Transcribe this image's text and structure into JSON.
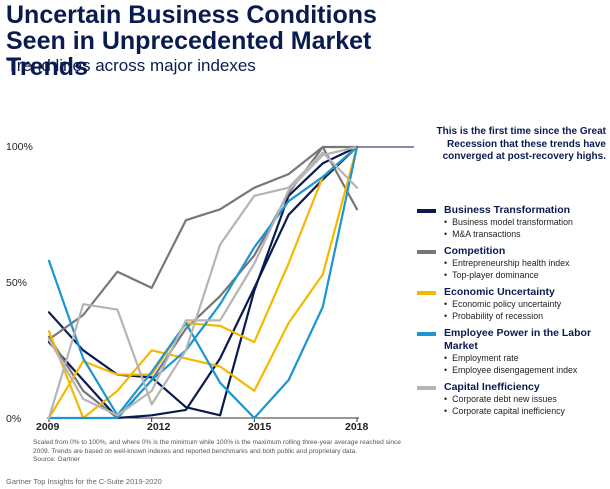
{
  "header": {
    "title": "Uncertain Business Conditions Seen in Unprecedented Market Trends",
    "subtitle": "Trend lines across major indexes"
  },
  "annotation": "This is the first time since the Great Recession that these trends have converged at post-recovery highs.",
  "footnote": {
    "scaling": "Scaled from 0% to 100%, and where 0% is the minimum while 100% is the maximum rolling three-year average reached since 2009. Trends are based on well-known indexes and reported benchmarks and both public and proprietary data.",
    "source": "Source: Gartner"
  },
  "credit": "Gartner Top Insights for the C-Suite 2019-2020",
  "legend": [
    {
      "name": "Business Transformation",
      "color": "#0a1b4f",
      "items": [
        "Business model transformation",
        "M&A transactions"
      ]
    },
    {
      "name": "Competition",
      "color": "#777777",
      "items": [
        "Entrepreneurship health index",
        "Top-player dominance"
      ]
    },
    {
      "name": "Economic Uncertainty",
      "color": "#f5b800",
      "items": [
        "Economic policy uncertainty",
        "Probability of recession"
      ]
    },
    {
      "name": "Employee Power in the Labor Market",
      "color": "#1c95d1",
      "items": [
        "Employment rate",
        "Employee disengagement index"
      ]
    },
    {
      "name": "Capital Inefficiency",
      "color": "#b5b5b5",
      "items": [
        "Corporate debt new issues",
        "Corporate capital inefficiency"
      ]
    }
  ],
  "chart_data": {
    "type": "line",
    "x": [
      2009,
      2010,
      2011,
      2012,
      2013,
      2014,
      2015,
      2016,
      2017,
      2018
    ],
    "xticks": [
      "2009",
      "2012",
      "2015",
      "2018"
    ],
    "yticks": [
      "0%",
      "50%",
      "100%"
    ],
    "ylim": [
      0,
      100
    ],
    "xlim": [
      2009,
      2018
    ],
    "series": [
      {
        "group": "Business Transformation",
        "color": "#0a1b4f",
        "values": [
          39,
          25,
          16,
          15,
          4,
          1,
          47,
          82,
          94,
          100
        ]
      },
      {
        "group": "Business Transformation",
        "color": "#0a1b4f",
        "values": [
          28,
          14,
          0,
          1,
          3,
          22,
          48,
          75,
          88,
          100
        ]
      },
      {
        "group": "Competition",
        "color": "#777777",
        "values": [
          29,
          38,
          54,
          48,
          73,
          77,
          85,
          90,
          100,
          77
        ]
      },
      {
        "group": "Competition",
        "color": "#777777",
        "values": [
          30,
          10,
          0,
          14,
          33,
          45,
          60,
          83,
          100,
          100
        ]
      },
      {
        "group": "Economic Uncertainty",
        "color": "#f5b800",
        "values": [
          32,
          0,
          10,
          25,
          22,
          19,
          10,
          35,
          53,
          100
        ]
      },
      {
        "group": "Economic Uncertainty",
        "color": "#f5b800",
        "values": [
          0,
          21,
          16,
          16,
          35,
          34,
          28,
          57,
          89,
          100
        ]
      },
      {
        "group": "Employee Power in the Labor Market",
        "color": "#1c95d1",
        "values": [
          58,
          22,
          1,
          17,
          35,
          13,
          0,
          14,
          41,
          100
        ]
      },
      {
        "group": "Employee Power in the Labor Market",
        "color": "#1c95d1",
        "values": [
          0,
          0,
          0,
          14,
          25,
          42,
          63,
          80,
          89,
          100
        ]
      },
      {
        "group": "Capital Inefficiency",
        "color": "#b5b5b5",
        "values": [
          0,
          42,
          40,
          5,
          25,
          64,
          82,
          85,
          98,
          85
        ]
      },
      {
        "group": "Capital Inefficiency",
        "color": "#b5b5b5",
        "values": [
          29,
          7,
          1,
          10,
          36,
          36,
          57,
          84,
          97,
          100
        ]
      }
    ]
  }
}
